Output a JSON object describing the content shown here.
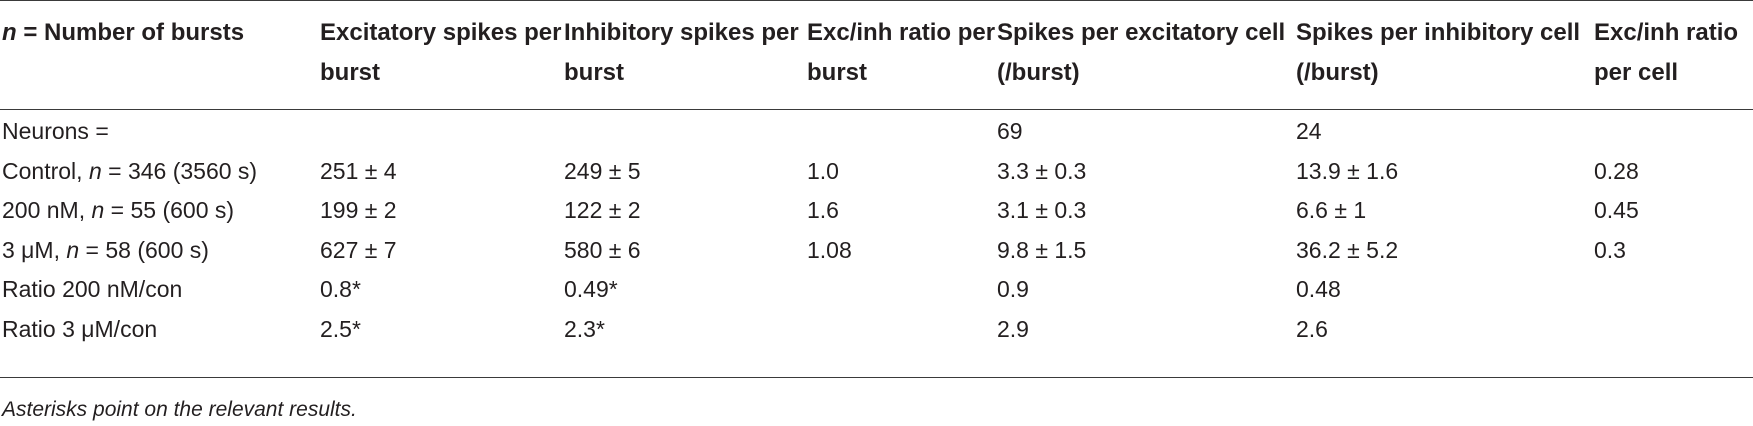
{
  "headers": [
    {
      "prefix": "n",
      "text": " = Number of bursts"
    },
    {
      "text": "Excitatory spikes per burst"
    },
    {
      "text": "Inhibitory spikes per burst"
    },
    {
      "text": "Exc/inh ratio per burst"
    },
    {
      "text": "Spikes per excitatory cell (/burst)"
    },
    {
      "text": "Spikes per inhibitory cell (/burst)"
    },
    {
      "text": "Exc/inh ratio per cell"
    }
  ],
  "rows": [
    {
      "label": "Neurons =",
      "cells": [
        "",
        "",
        "",
        "69",
        "24",
        ""
      ]
    },
    {
      "label_pre": "Control, ",
      "label_n": "n",
      "label_post": " = 346 (3560 s)",
      "cells": [
        "251 ± 4",
        "249 ± 5",
        "1.0",
        "3.3 ± 0.3",
        "13.9 ± 1.6",
        "0.28"
      ]
    },
    {
      "label_pre": "200 nM, ",
      "label_n": "n",
      "label_post": " = 55 (600 s)",
      "cells": [
        "199 ± 2",
        "122 ± 2",
        "1.6",
        "3.1 ± 0.3",
        "6.6 ± 1",
        "0.45"
      ]
    },
    {
      "label_pre": "3 μM, ",
      "label_n": "n",
      "label_post": " = 58 (600 s)",
      "cells": [
        "627 ± 7",
        "580 ± 6",
        "1.08",
        "9.8 ± 1.5",
        "36.2 ± 5.2",
        "0.3"
      ]
    },
    {
      "label": "Ratio 200 nM/con",
      "cells": [
        "0.8*",
        "0.49*",
        "",
        "0.9",
        "0.48",
        ""
      ]
    },
    {
      "label": "Ratio 3 μM/con",
      "cells": [
        "2.5*",
        "2.3*",
        "",
        "2.9",
        "2.6",
        ""
      ]
    }
  ],
  "footnote": "Asterisks point on the relevant results."
}
